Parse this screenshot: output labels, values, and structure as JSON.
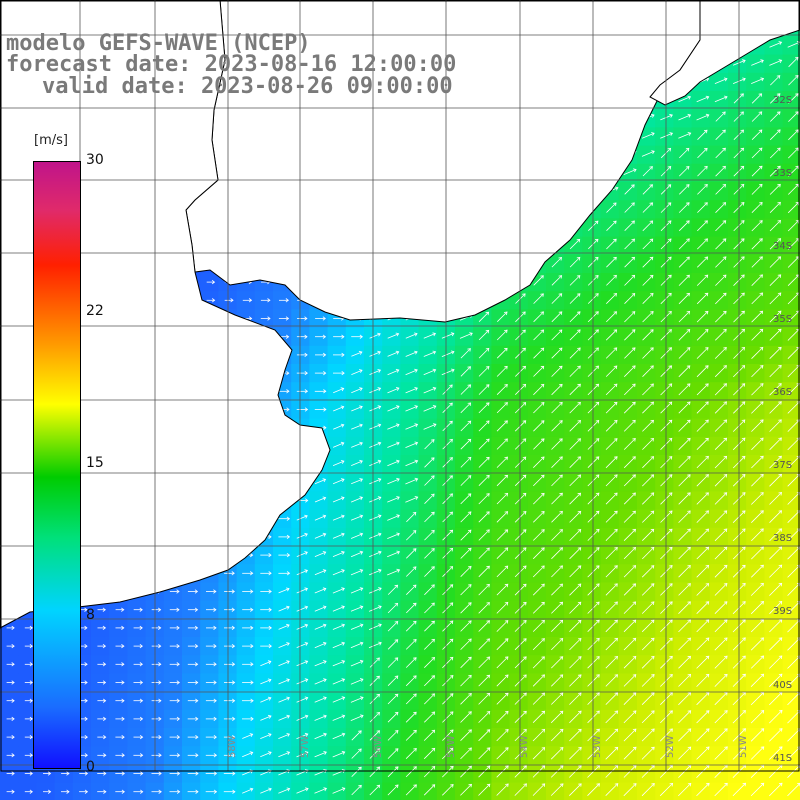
{
  "title": {
    "line1": "modelo GEFS-WAVE (NCEP)",
    "line2": "forecast date: 2023-08-16 12:00:00",
    "line3": "valid date: 2023-08-26 09:00:00"
  },
  "colorbar": {
    "unit": "[m/s]",
    "ticks": [
      "30",
      "22",
      "15",
      "8",
      "0"
    ],
    "tick_values": [
      30,
      22,
      15,
      8,
      0
    ],
    "colors": [
      "#1010ff",
      "#1a6cff",
      "#00d4ff",
      "#00e07a",
      "#00cc00",
      "#ffff00",
      "#ff9900",
      "#ff2000",
      "#c0148a"
    ]
  },
  "map": {
    "lat_labels": [
      "32S",
      "33S",
      "34S",
      "35S",
      "36S",
      "37S",
      "38S",
      "39S",
      "40S",
      "41S"
    ],
    "lon_labels": [
      "58W",
      "57W",
      "56W",
      "55W",
      "54W",
      "53W",
      "52W",
      "51W"
    ],
    "land_color": "#ffffff",
    "grid_color": "#555555",
    "arrow_color": "#ffffff"
  }
}
